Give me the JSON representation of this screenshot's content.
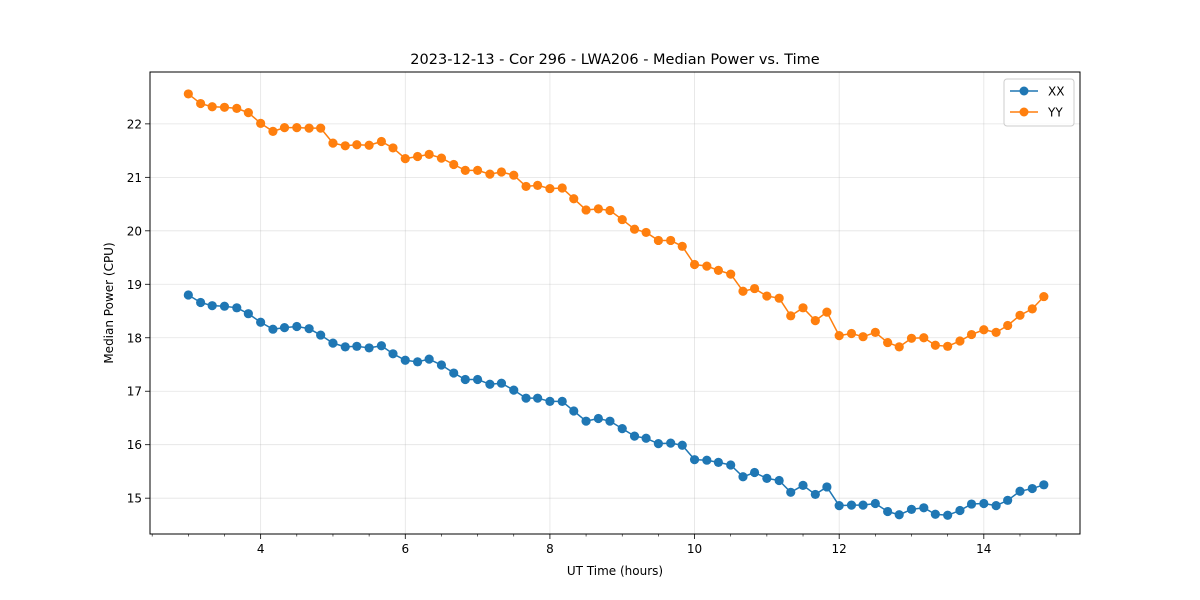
{
  "chart_data": {
    "type": "line",
    "title": "2023-12-13 - Cor 296 - LWA206 - Median Power vs. Time",
    "xlabel": "UT Time (hours)",
    "ylabel": "Median Power (CPU)",
    "xlim": [
      2.47,
      15.33
    ],
    "ylim": [
      14.33,
      22.97
    ],
    "x_ticks": [
      4,
      6,
      8,
      10,
      12,
      14
    ],
    "x_tick_labels": [
      "4",
      "6",
      "8",
      "10",
      "12",
      "14"
    ],
    "y_ticks": [
      15,
      16,
      17,
      18,
      19,
      20,
      21,
      22
    ],
    "y_tick_labels": [
      "15",
      "16",
      "17",
      "18",
      "19",
      "20",
      "21",
      "22"
    ],
    "grid": true,
    "legend_position": "top-right",
    "x": [
      3.0,
      3.17,
      3.33,
      3.5,
      3.67,
      3.83,
      4.0,
      4.17,
      4.33,
      4.5,
      4.67,
      4.83,
      5.0,
      5.17,
      5.33,
      5.5,
      5.67,
      5.83,
      6.0,
      6.17,
      6.33,
      6.5,
      6.67,
      6.83,
      7.0,
      7.17,
      7.33,
      7.5,
      7.67,
      7.83,
      8.0,
      8.17,
      8.33,
      8.5,
      8.67,
      8.83,
      9.0,
      9.17,
      9.33,
      9.5,
      9.67,
      9.83,
      10.0,
      10.17,
      10.33,
      10.5,
      10.67,
      10.83,
      11.0,
      11.17,
      11.33,
      11.5,
      11.67,
      11.83,
      12.0,
      12.17,
      12.33,
      12.5,
      12.67,
      12.83,
      13.0,
      13.17,
      13.33,
      13.5,
      13.67,
      13.83,
      14.0,
      14.17,
      14.33,
      14.5,
      14.67,
      14.83
    ],
    "series": [
      {
        "name": "XX",
        "color": "#1f77b4",
        "values": [
          18.8,
          18.66,
          18.6,
          18.59,
          18.56,
          18.45,
          18.29,
          18.16,
          18.19,
          18.21,
          18.17,
          18.05,
          17.9,
          17.83,
          17.84,
          17.81,
          17.85,
          17.7,
          17.58,
          17.55,
          17.6,
          17.49,
          17.34,
          17.22,
          17.22,
          17.13,
          17.15,
          17.02,
          16.87,
          16.87,
          16.81,
          16.81,
          16.63,
          16.44,
          16.49,
          16.44,
          16.3,
          16.16,
          16.12,
          16.02,
          16.03,
          15.99,
          15.72,
          15.71,
          15.67,
          15.62,
          15.4,
          15.48,
          15.37,
          15.33,
          15.11,
          15.24,
          15.07,
          15.21,
          14.86,
          14.87,
          14.87,
          14.9,
          14.75,
          14.69,
          14.79,
          14.82,
          14.7,
          14.68,
          14.77,
          14.89,
          14.9,
          14.86,
          14.96,
          15.13,
          15.18,
          15.25
        ]
      },
      {
        "name": "YY",
        "color": "#ff7f0e",
        "values": [
          22.56,
          22.38,
          22.32,
          22.31,
          22.29,
          22.21,
          22.01,
          21.86,
          21.93,
          21.93,
          21.92,
          21.92,
          21.64,
          21.59,
          21.61,
          21.6,
          21.67,
          21.55,
          21.35,
          21.39,
          21.43,
          21.36,
          21.24,
          21.13,
          21.13,
          21.06,
          21.1,
          21.04,
          20.83,
          20.85,
          20.79,
          20.8,
          20.6,
          20.39,
          20.41,
          20.38,
          20.21,
          20.03,
          19.97,
          19.82,
          19.82,
          19.71,
          19.37,
          19.34,
          19.26,
          19.19,
          18.87,
          18.92,
          18.78,
          18.74,
          18.41,
          18.56,
          18.32,
          18.48,
          18.04,
          18.08,
          18.02,
          18.1,
          17.91,
          17.83,
          17.99,
          18.0,
          17.86,
          17.84,
          17.94,
          18.06,
          18.15,
          18.1,
          18.23,
          18.42,
          18.54,
          18.77
        ]
      }
    ]
  }
}
